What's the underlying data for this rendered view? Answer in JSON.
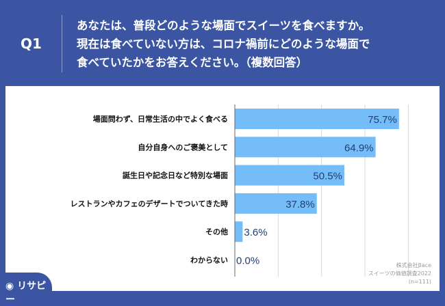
{
  "header": {
    "q_label": "Q1",
    "question": "あなたは、普段どのような場面でスイーツを食べますか。\n現在は食べていない方は、コロナ禍前にどのような場面で\n食べていたかをお答えください。（複数回答）"
  },
  "logo": "リサピー",
  "credit": {
    "company": "株式会社βace",
    "survey": "スイーツの価値調査2022",
    "n": "(n=111)"
  },
  "colors": {
    "background": "#3b55a3",
    "bar": "#74bdf8",
    "label": "#1f3f73"
  },
  "chart_data": {
    "type": "bar",
    "orientation": "horizontal",
    "categories": [
      "場面問わず、日常生活の中でよく食べる",
      "自分自身へのご褒美として",
      "誕生日や記念日など特別な場面",
      "レストランやカフェのデザートでついてきた時",
      "その他",
      "わからない"
    ],
    "values": [
      75.7,
      64.9,
      50.5,
      37.8,
      3.6,
      0.0
    ],
    "data_labels": [
      "75.7%",
      "64.9%",
      "50.5%",
      "37.8%",
      "3.6%",
      "0.0%"
    ],
    "xlim": [
      0,
      100
    ],
    "grid": true,
    "gridlines": [
      20,
      40,
      60,
      80
    ]
  }
}
